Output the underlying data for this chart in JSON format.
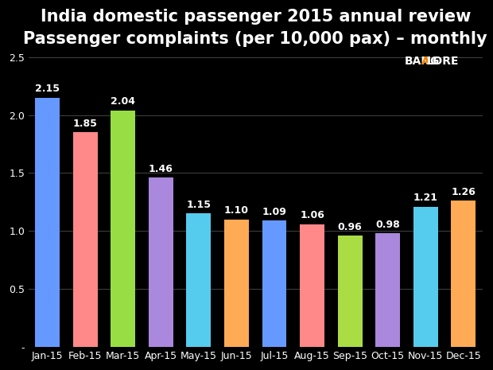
{
  "title_line1": "India domestic passenger 2015 annual review",
  "title_line2": "Passenger complaints (per 10,000 pax) – monthly",
  "months": [
    "Jan-15",
    "Feb-15",
    "Mar-15",
    "Apr-15",
    "May-15",
    "Jun-15",
    "Jul-15",
    "Aug-15",
    "Sep-15",
    "Oct-15",
    "Nov-15",
    "Dec-15"
  ],
  "values": [
    2.15,
    1.85,
    2.04,
    1.46,
    1.15,
    1.1,
    1.09,
    1.06,
    0.96,
    0.98,
    1.21,
    1.26
  ],
  "bar_colors": [
    "#6699FF",
    "#FF8888",
    "#99DD44",
    "#AA88DD",
    "#55CCEE",
    "#FFAA55",
    "#6699FF",
    "#FF8888",
    "#AADD44",
    "#AA88DD",
    "#55CCEE",
    "#FFAA55"
  ],
  "ylim": [
    0,
    2.5
  ],
  "yticks": [
    0.0,
    0.5,
    1.0,
    1.5,
    2.0,
    2.5
  ],
  "ytick_labels": [
    "-",
    "0.5",
    "1.0",
    "1.5",
    "2.0",
    "2.5"
  ],
  "background_color": "#000000",
  "text_color": "#ffffff",
  "grid_color": "#444444",
  "title_fontsize": 15,
  "label_fontsize": 9,
  "tick_fontsize": 9,
  "value_fontsize": 9
}
